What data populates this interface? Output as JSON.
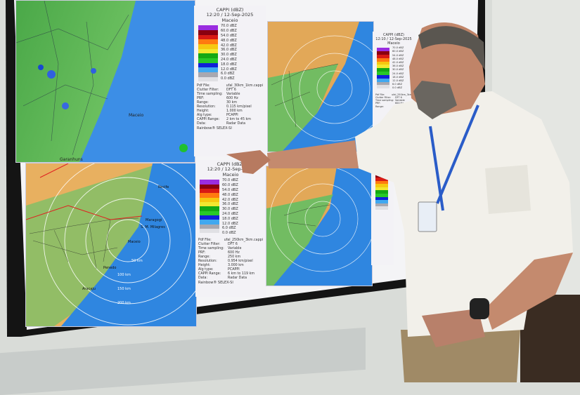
{
  "radar_panels": [
    {
      "title": "CAPPI (dBZ)",
      "datetime": "12:20 / 12-Sep-2025",
      "site": "Maceio",
      "fields": [
        [
          "Pdf File:",
          "ufal_30km_1km.cappi"
        ],
        [
          "Clutter Filter:",
          "DFT 6"
        ],
        [
          "Time sampling:",
          "Variable"
        ],
        [
          "PRF:",
          "600 Hz"
        ],
        [
          "Range:",
          "30 km"
        ],
        [
          "Resolution:",
          "0.115 km/pixel"
        ],
        [
          "Height:",
          "1.000 km"
        ],
        [
          "Alg type:",
          "PCAPPI"
        ],
        [
          "CAPPI Range:",
          "2 km to 45 km"
        ],
        [
          "Data:",
          "Radar Data"
        ]
      ],
      "footer": "Rainbow® SELEX-SI"
    },
    {
      "title": "CAPPI (dBZ)",
      "datetime": "12:20 / 12-Sep-2025",
      "site": "Maceio",
      "fields": [
        [
          "Pdf File:",
          "ufal_250km_3km.cappi"
        ],
        [
          "Clutter Filter:",
          "DFT 6"
        ],
        [
          "Time sampling:",
          "Variable"
        ],
        [
          "PRF:",
          "600 Hz"
        ],
        [
          "Range:",
          "250 km"
        ],
        [
          "Resolution:",
          "0.954 km/pixel"
        ],
        [
          "Height:",
          "3.000 km"
        ],
        [
          "Alg type:",
          "PCAPPI"
        ],
        [
          "CAPPI Range:",
          "6 km to 119 km"
        ],
        [
          "Data:",
          "Radar Data"
        ]
      ],
      "footer": "Rainbow® SELEX-SI"
    },
    {
      "title": "CAPPI (dBZ)",
      "datetime": "12:10 / 12-Sep-2025",
      "site": "Maceio",
      "fields": [
        [
          "Pdf File:",
          "ufal_250km_3km"
        ],
        [
          "Clutter Filter:",
          "DFT 6"
        ],
        [
          "Time sampling:",
          "Variable"
        ],
        [
          "PRF:",
          "600 Hz"
        ],
        [
          "Range:",
          "250 km"
        ]
      ],
      "footer": ""
    }
  ],
  "legend_scale": [
    "70.0 dBZ",
    "60.0 dBZ",
    "54.0 dBZ",
    "48.0 dBZ",
    "42.0 dBZ",
    "36.0 dBZ",
    "30.0 dBZ",
    "24.0 dBZ",
    "18.0 dBZ",
    "12.0 dBZ",
    "6.0 dBZ",
    "0.0 dBZ"
  ],
  "legend_colors": [
    "#9a2de0",
    "#8a0010",
    "#d81a14",
    "#ff7a10",
    "#f6c810",
    "#f2e830",
    "#14a814",
    "#28c828",
    "#1020d8",
    "#40a8f0",
    "#a8a8b0",
    "#e0e0e4"
  ],
  "map_labels": {
    "range_rings": [
      "50 km",
      "100 km",
      "150 km",
      "200 km"
    ],
    "cities": [
      "Recife",
      "Maragogi",
      "S. M. Milagres",
      "Maceio",
      "Aracaju",
      "Penedo"
    ],
    "city_tl": [
      "Maceio",
      "Garanhuns"
    ]
  },
  "colors": {
    "ocean": "#2f86e0",
    "land_green": "#5ab85a",
    "land_orange": "#e8b060",
    "shirt": "#f2f0ea",
    "lanyard": "#2a5cc8"
  }
}
